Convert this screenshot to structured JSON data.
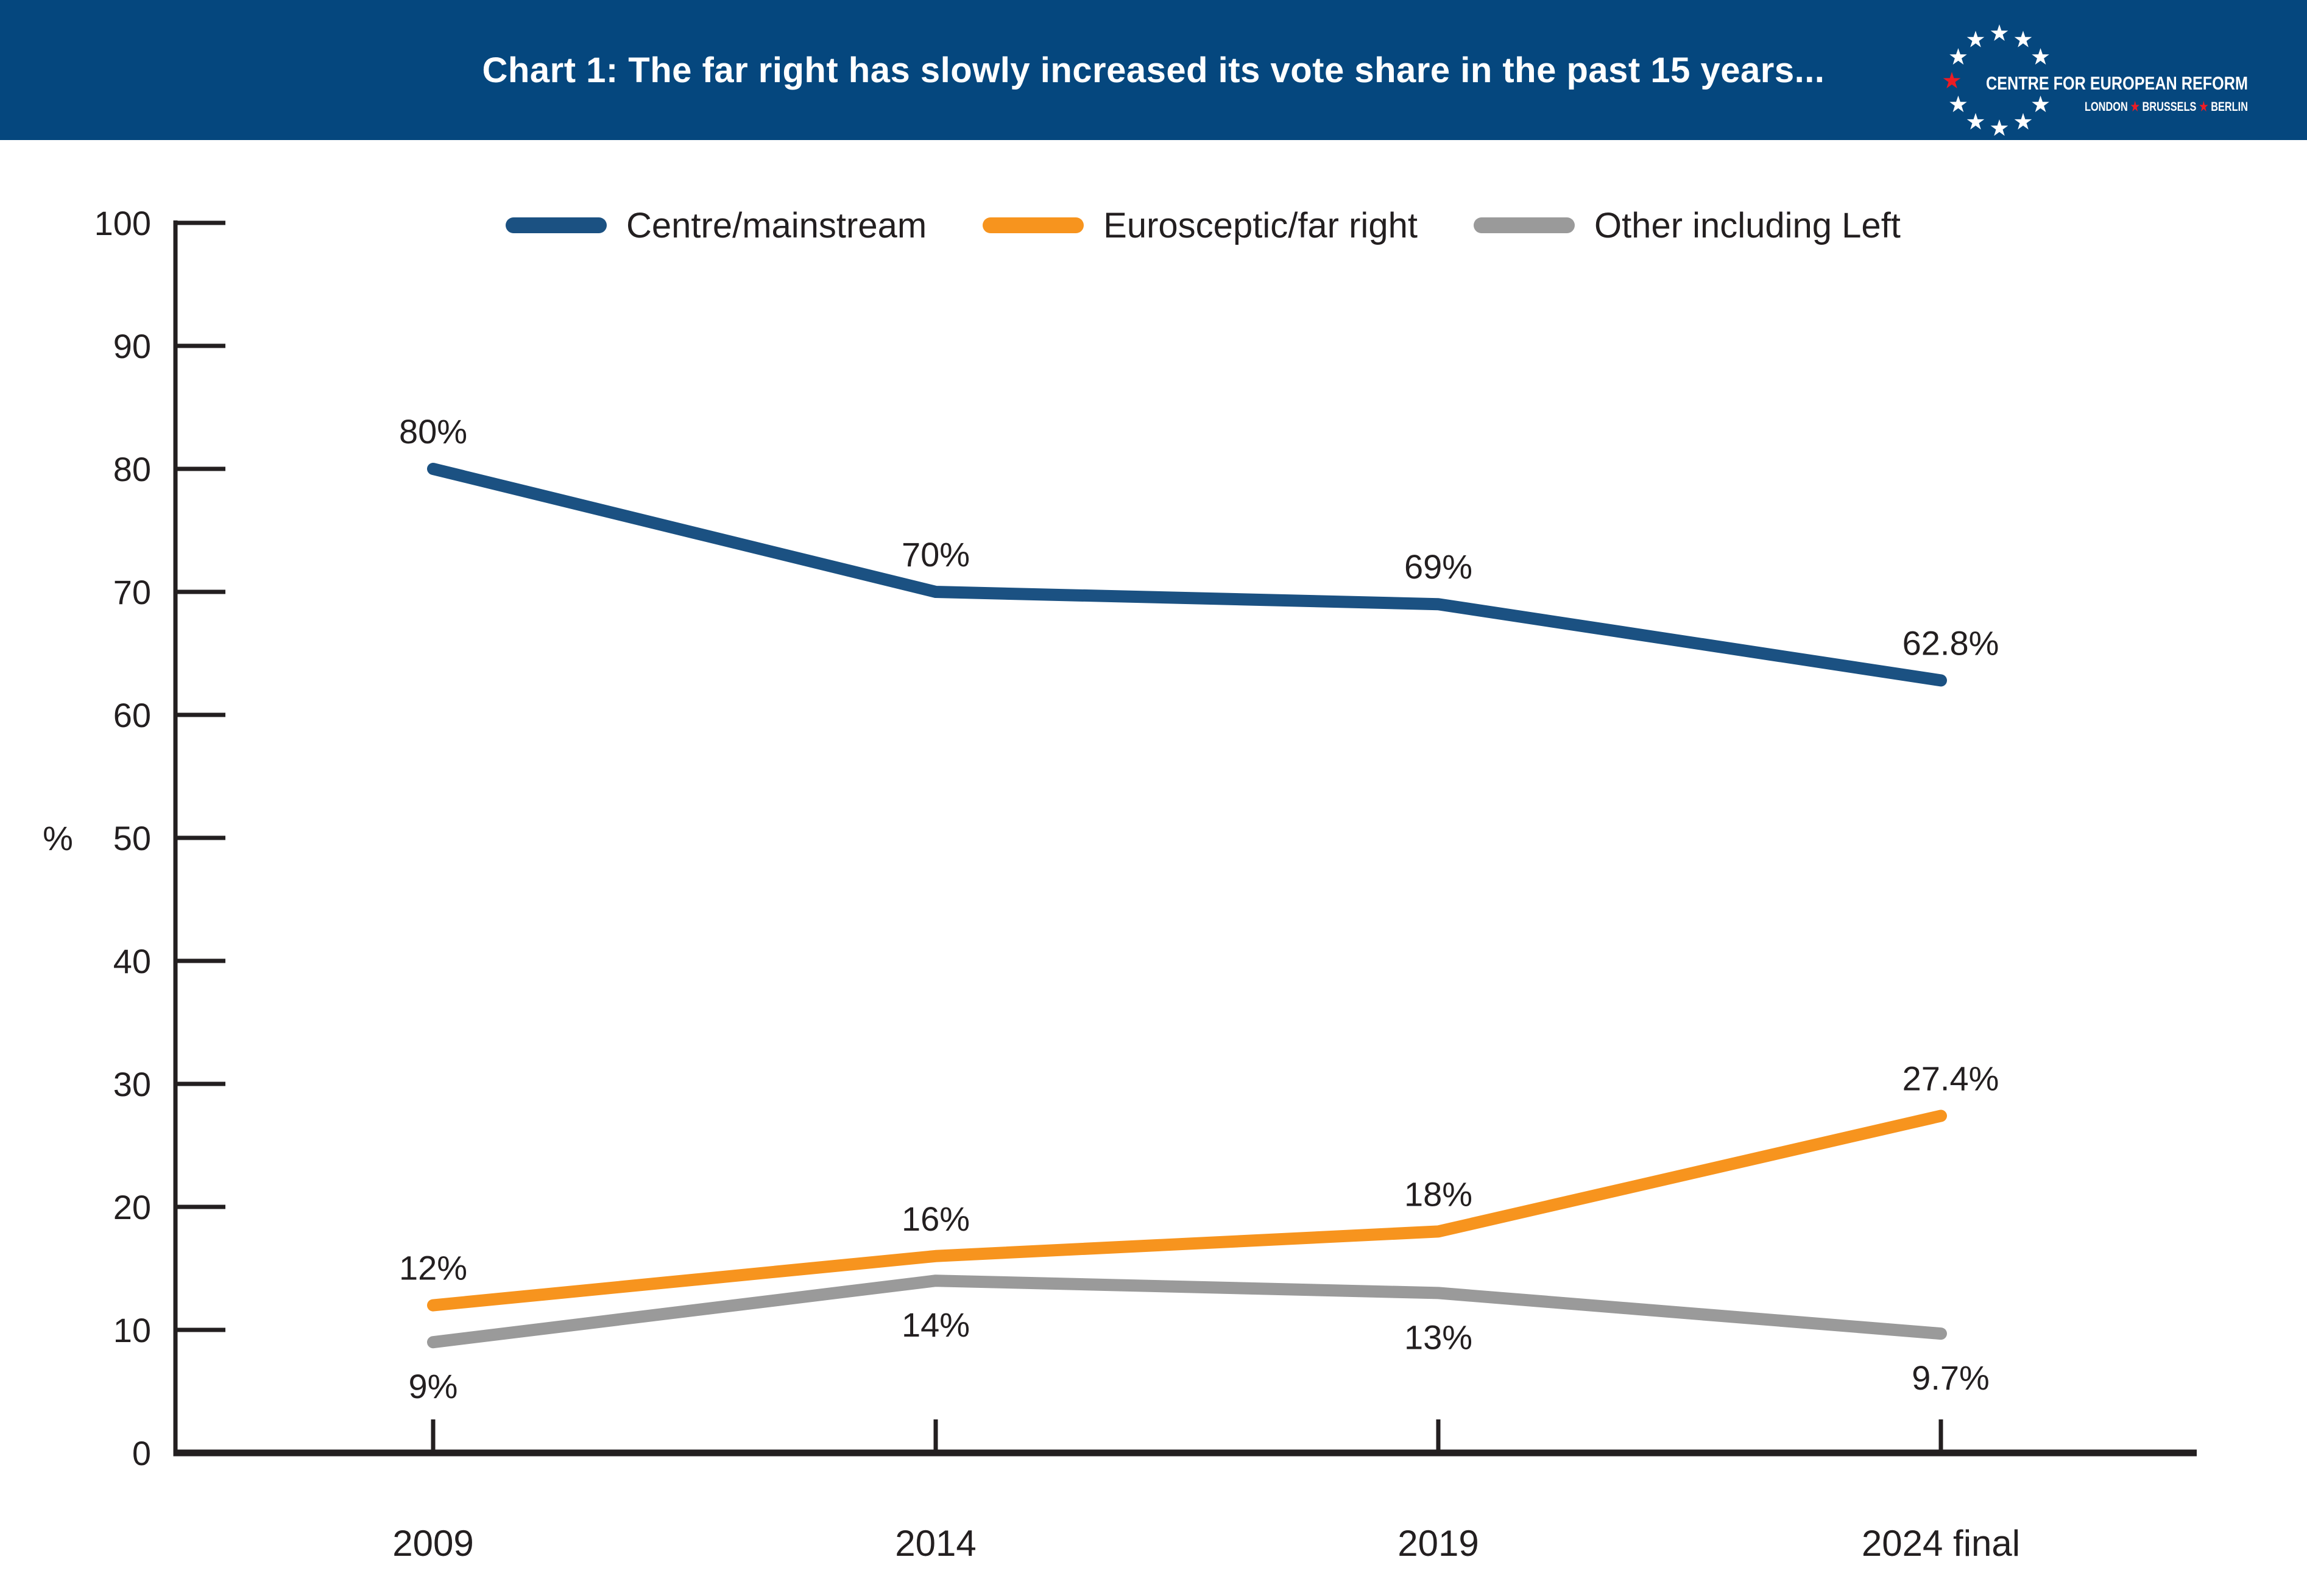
{
  "header": {
    "title": "Chart 1: The far right has slowly increased its vote share in the past 15 years...",
    "bg_color": "#05477E",
    "logo": {
      "name": "CENTRE FOR EUROPEAN REFORM",
      "cities": [
        "LONDON",
        "BRUSSELS",
        "BERLIN"
      ],
      "star_color": "#ffffff",
      "accent_star_color": "#ED1C24",
      "text_color": "#ffffff"
    }
  },
  "legend": {
    "items": [
      {
        "label": "Centre/mainstream",
        "color": "#1B5182"
      },
      {
        "label": "Eurosceptic/far right",
        "color": "#F7941E"
      },
      {
        "label": "Other including Left",
        "color": "#9A9A9A"
      }
    ]
  },
  "chart_data": {
    "type": "line",
    "title": "Chart 1: The far right has slowly increased its vote share in the past 15 years...",
    "categories": [
      "2009",
      "2014",
      "2019",
      "2024 final"
    ],
    "series": [
      {
        "name": "Centre/mainstream",
        "color": "#1B5182",
        "values": [
          80,
          70,
          69,
          62.8
        ],
        "point_labels": [
          "80%",
          "70%",
          "69%",
          "62.8%"
        ],
        "label_position": "above"
      },
      {
        "name": "Eurosceptic/far right",
        "color": "#F7941E",
        "values": [
          12,
          16,
          18,
          27.4
        ],
        "point_labels": [
          "12%",
          "16%",
          "18%",
          "27.4%"
        ],
        "label_position": "above"
      },
      {
        "name": "Other including Left",
        "color": "#9A9A9A",
        "values": [
          9,
          14,
          13,
          9.7
        ],
        "point_labels": [
          "9%",
          "14%",
          "13%",
          "9.7%"
        ],
        "label_position": "below"
      }
    ],
    "xlabel": "",
    "ylabel": "%",
    "ylim": [
      0,
      100
    ],
    "yticks": [
      0,
      10,
      20,
      30,
      40,
      50,
      60,
      70,
      80,
      90,
      100
    ],
    "grid": false,
    "legend_position": "top",
    "axis_color": "#231f20",
    "text_color": "#231f20"
  }
}
